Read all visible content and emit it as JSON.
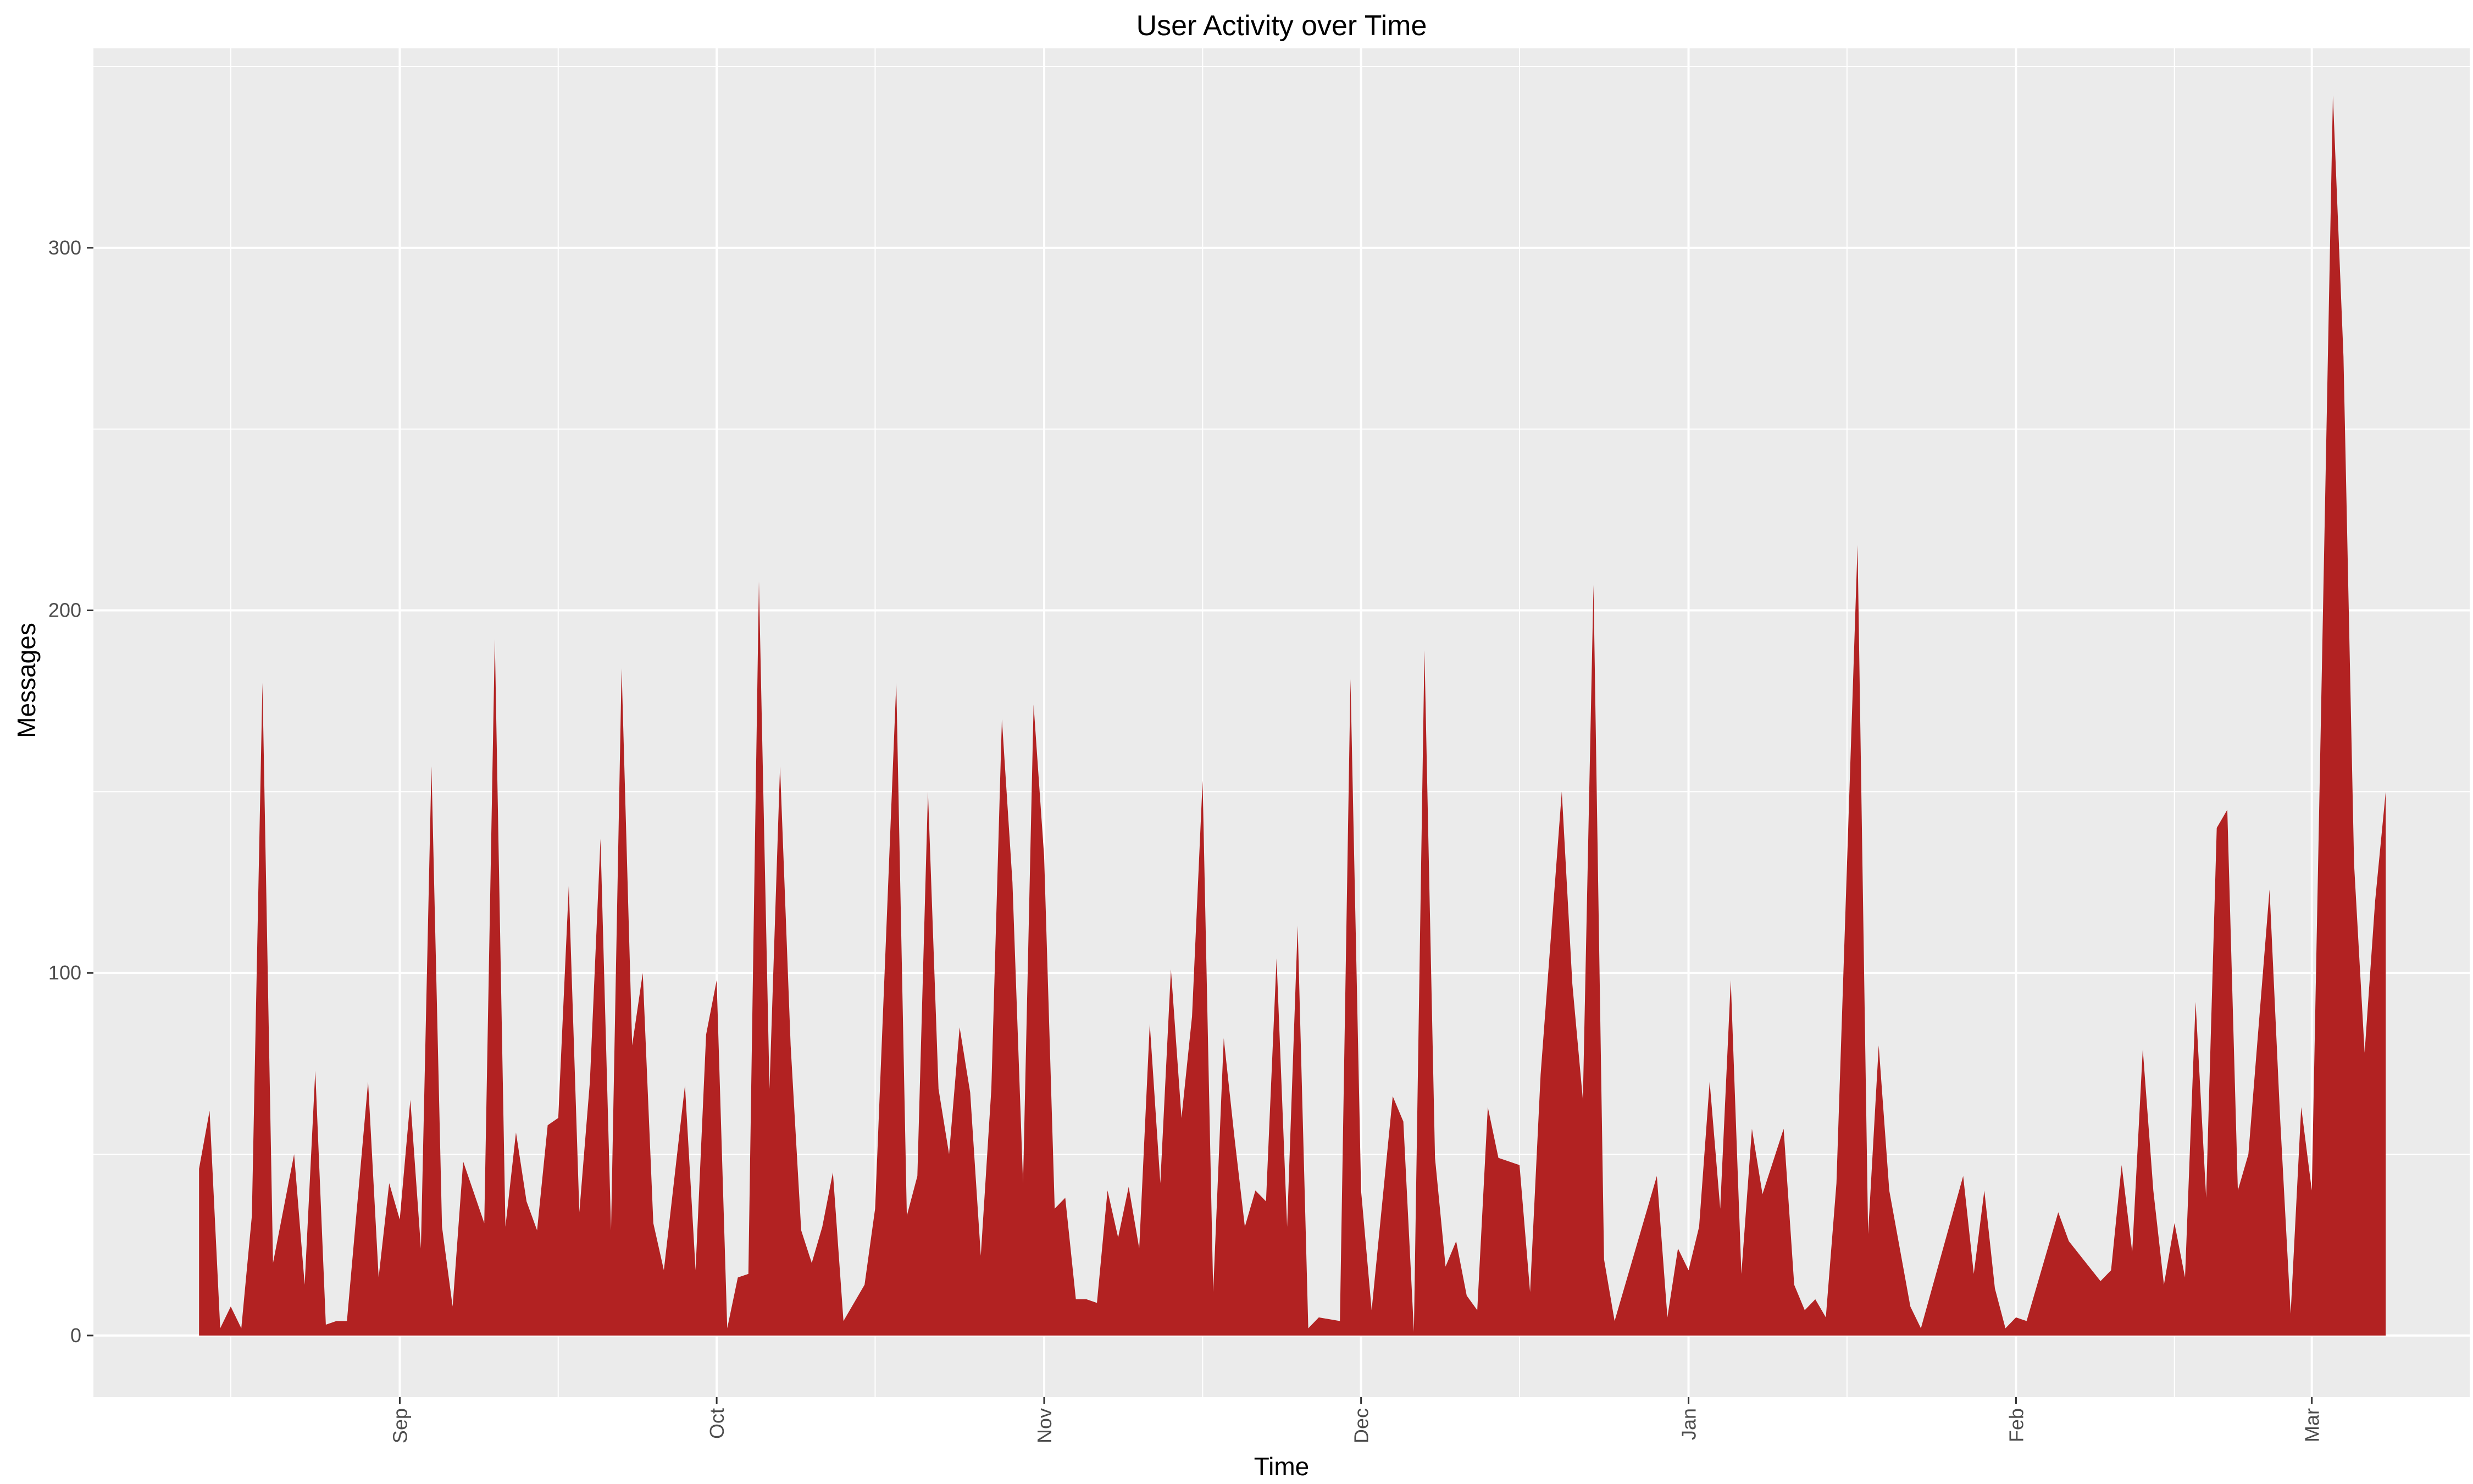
{
  "chart_data": {
    "type": "area",
    "title": "User Activity over Time",
    "xlabel": "Time",
    "ylabel": "Messages",
    "fill_color": "#b22222",
    "panel_background": "#ebebeb",
    "grid": true,
    "legend": "none",
    "xlim": [
      "2018-08-03",
      "2019-03-16"
    ],
    "ylim": [
      -17,
      355
    ],
    "y_ticks": [
      0,
      100,
      200,
      300
    ],
    "x_ticks": [
      {
        "date": "2018-09-01",
        "label": "Sep"
      },
      {
        "date": "2018-10-01",
        "label": "Oct"
      },
      {
        "date": "2018-11-01",
        "label": "Nov"
      },
      {
        "date": "2018-12-01",
        "label": "Dec"
      },
      {
        "date": "2019-01-01",
        "label": "Jan"
      },
      {
        "date": "2019-02-01",
        "label": "Feb"
      },
      {
        "date": "2019-03-01",
        "label": "Mar"
      }
    ],
    "x_minor_ticks": [
      "2018-08-16",
      "2018-09-16",
      "2018-10-16",
      "2018-11-16",
      "2018-12-16",
      "2019-01-16",
      "2019-02-16",
      "2019-03-16"
    ],
    "series": [
      {
        "points": [
          [
            "2018-08-13",
            0
          ],
          [
            "2018-08-13",
            46
          ],
          [
            "2018-08-14",
            62
          ],
          [
            "2018-08-15",
            2
          ],
          [
            "2018-08-16",
            8
          ],
          [
            "2018-08-17",
            2
          ],
          [
            "2018-08-18",
            33
          ],
          [
            "2018-08-19",
            180
          ],
          [
            "2018-08-20",
            20
          ],
          [
            "2018-08-22",
            50
          ],
          [
            "2018-08-23",
            14
          ],
          [
            "2018-08-24",
            73
          ],
          [
            "2018-08-25",
            3
          ],
          [
            "2018-08-26",
            4
          ],
          [
            "2018-08-27",
            4
          ],
          [
            "2018-08-29",
            70
          ],
          [
            "2018-08-30",
            16
          ],
          [
            "2018-08-31",
            42
          ],
          [
            "2018-09-01",
            32
          ],
          [
            "2018-09-02",
            65
          ],
          [
            "2018-09-03",
            24
          ],
          [
            "2018-09-04",
            157
          ],
          [
            "2018-09-05",
            30
          ],
          [
            "2018-09-06",
            8
          ],
          [
            "2018-09-07",
            48
          ],
          [
            "2018-09-09",
            31
          ],
          [
            "2018-09-10",
            192
          ],
          [
            "2018-09-11",
            30
          ],
          [
            "2018-09-12",
            56
          ],
          [
            "2018-09-13",
            37
          ],
          [
            "2018-09-14",
            29
          ],
          [
            "2018-09-15",
            58
          ],
          [
            "2018-09-16",
            60
          ],
          [
            "2018-09-17",
            124
          ],
          [
            "2018-09-18",
            34
          ],
          [
            "2018-09-19",
            70
          ],
          [
            "2018-09-20",
            137
          ],
          [
            "2018-09-21",
            29
          ],
          [
            "2018-09-22",
            184
          ],
          [
            "2018-09-23",
            80
          ],
          [
            "2018-09-24",
            100
          ],
          [
            "2018-09-25",
            31
          ],
          [
            "2018-09-26",
            18
          ],
          [
            "2018-09-28",
            69
          ],
          [
            "2018-09-29",
            18
          ],
          [
            "2018-09-30",
            83
          ],
          [
            "2018-10-01",
            98
          ],
          [
            "2018-10-02",
            2
          ],
          [
            "2018-10-03",
            16
          ],
          [
            "2018-10-04",
            17
          ],
          [
            "2018-10-05",
            208
          ],
          [
            "2018-10-06",
            68
          ],
          [
            "2018-10-07",
            157
          ],
          [
            "2018-10-08",
            80
          ],
          [
            "2018-10-09",
            29
          ],
          [
            "2018-10-10",
            20
          ],
          [
            "2018-10-11",
            30
          ],
          [
            "2018-10-12",
            45
          ],
          [
            "2018-10-13",
            4
          ],
          [
            "2018-10-15",
            14
          ],
          [
            "2018-10-16",
            35
          ],
          [
            "2018-10-18",
            180
          ],
          [
            "2018-10-19",
            33
          ],
          [
            "2018-10-20",
            44
          ],
          [
            "2018-10-21",
            150
          ],
          [
            "2018-10-22",
            68
          ],
          [
            "2018-10-23",
            50
          ],
          [
            "2018-10-24",
            85
          ],
          [
            "2018-10-25",
            67
          ],
          [
            "2018-10-26",
            22
          ],
          [
            "2018-10-27",
            68
          ],
          [
            "2018-10-28",
            170
          ],
          [
            "2018-10-29",
            125
          ],
          [
            "2018-10-30",
            42
          ],
          [
            "2018-10-31",
            174
          ],
          [
            "2018-11-01",
            132
          ],
          [
            "2018-11-02",
            35
          ],
          [
            "2018-11-03",
            38
          ],
          [
            "2018-11-04",
            10
          ],
          [
            "2018-11-05",
            10
          ],
          [
            "2018-11-06",
            9
          ],
          [
            "2018-11-07",
            40
          ],
          [
            "2018-11-08",
            27
          ],
          [
            "2018-11-09",
            41
          ],
          [
            "2018-11-10",
            24
          ],
          [
            "2018-11-11",
            86
          ],
          [
            "2018-11-12",
            42
          ],
          [
            "2018-11-13",
            101
          ],
          [
            "2018-11-14",
            60
          ],
          [
            "2018-11-15",
            88
          ],
          [
            "2018-11-16",
            153
          ],
          [
            "2018-11-17",
            12
          ],
          [
            "2018-11-18",
            82
          ],
          [
            "2018-11-19",
            55
          ],
          [
            "2018-11-20",
            30
          ],
          [
            "2018-11-21",
            40
          ],
          [
            "2018-11-22",
            37
          ],
          [
            "2018-11-23",
            104
          ],
          [
            "2018-11-24",
            30
          ],
          [
            "2018-11-25",
            113
          ],
          [
            "2018-11-26",
            2
          ],
          [
            "2018-11-27",
            5
          ],
          [
            "2018-11-29",
            4
          ],
          [
            "2018-11-30",
            181
          ],
          [
            "2018-12-01",
            40
          ],
          [
            "2018-12-02",
            7
          ],
          [
            "2018-12-04",
            66
          ],
          [
            "2018-12-05",
            59
          ],
          [
            "2018-12-06",
            1
          ],
          [
            "2018-12-07",
            189
          ],
          [
            "2018-12-08",
            49
          ],
          [
            "2018-12-09",
            19
          ],
          [
            "2018-12-10",
            26
          ],
          [
            "2018-12-11",
            11
          ],
          [
            "2018-12-12",
            7
          ],
          [
            "2018-12-13",
            63
          ],
          [
            "2018-12-14",
            49
          ],
          [
            "2018-12-16",
            47
          ],
          [
            "2018-12-17",
            12
          ],
          [
            "2018-12-18",
            72
          ],
          [
            "2018-12-20",
            150
          ],
          [
            "2018-12-21",
            97
          ],
          [
            "2018-12-22",
            65
          ],
          [
            "2018-12-23",
            207
          ],
          [
            "2018-12-24",
            21
          ],
          [
            "2018-12-25",
            4
          ],
          [
            "2018-12-29",
            44
          ],
          [
            "2018-12-30",
            5
          ],
          [
            "2018-12-31",
            24
          ],
          [
            "2019-01-01",
            18
          ],
          [
            "2019-01-02",
            30
          ],
          [
            "2019-01-03",
            70
          ],
          [
            "2019-01-04",
            35
          ],
          [
            "2019-01-05",
            98
          ],
          [
            "2019-01-06",
            17
          ],
          [
            "2019-01-07",
            57
          ],
          [
            "2019-01-08",
            39
          ],
          [
            "2019-01-10",
            57
          ],
          [
            "2019-01-11",
            14
          ],
          [
            "2019-01-12",
            7
          ],
          [
            "2019-01-13",
            10
          ],
          [
            "2019-01-14",
            5
          ],
          [
            "2019-01-15",
            42
          ],
          [
            "2019-01-17",
            218
          ],
          [
            "2019-01-18",
            28
          ],
          [
            "2019-01-19",
            80
          ],
          [
            "2019-01-20",
            40
          ],
          [
            "2019-01-22",
            8
          ],
          [
            "2019-01-23",
            2
          ],
          [
            "2019-01-27",
            44
          ],
          [
            "2019-01-28",
            17
          ],
          [
            "2019-01-29",
            40
          ],
          [
            "2019-01-30",
            13
          ],
          [
            "2019-01-31",
            2
          ],
          [
            "2019-02-01",
            5
          ],
          [
            "2019-02-02",
            4
          ],
          [
            "2019-02-05",
            34
          ],
          [
            "2019-02-06",
            26
          ],
          [
            "2019-02-09",
            15
          ],
          [
            "2019-02-10",
            18
          ],
          [
            "2019-02-11",
            47
          ],
          [
            "2019-02-12",
            23
          ],
          [
            "2019-02-13",
            79
          ],
          [
            "2019-02-14",
            40
          ],
          [
            "2019-02-15",
            14
          ],
          [
            "2019-02-16",
            31
          ],
          [
            "2019-02-17",
            16
          ],
          [
            "2019-02-18",
            92
          ],
          [
            "2019-02-19",
            38
          ],
          [
            "2019-02-20",
            140
          ],
          [
            "2019-02-21",
            145
          ],
          [
            "2019-02-22",
            40
          ],
          [
            "2019-02-23",
            50
          ],
          [
            "2019-02-25",
            123
          ],
          [
            "2019-02-26",
            60
          ],
          [
            "2019-02-27",
            6
          ],
          [
            "2019-02-28",
            63
          ],
          [
            "2019-03-01",
            40
          ],
          [
            "2019-03-03",
            342
          ],
          [
            "2019-03-04",
            270
          ],
          [
            "2019-03-05",
            130
          ],
          [
            "2019-03-06",
            78
          ],
          [
            "2019-03-07",
            120
          ],
          [
            "2019-03-08",
            150
          ],
          [
            "2019-03-08",
            0
          ]
        ]
      }
    ]
  }
}
